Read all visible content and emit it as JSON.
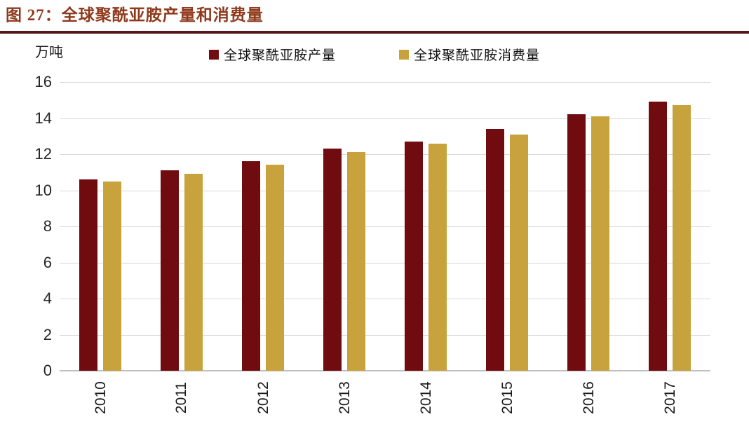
{
  "page": {
    "figure_title": "图 27：全球聚酰亚胺产量和消费量"
  },
  "chart": {
    "unit_label": "万吨"
  },
  "colors": {
    "title_text": "#8F3A1C",
    "title_rule": "#54181B",
    "production_bar": "#700C10",
    "consumption_bar": "#C8A23C",
    "gridline": "#D9D9D9",
    "axis_line": "#BFBFBF"
  },
  "chart_data": {
    "type": "bar",
    "title": "全球聚酰亚胺产量和消费量",
    "ylabel": "万吨",
    "xlabel": "",
    "categories": [
      "2010",
      "2011",
      "2012",
      "2013",
      "2014",
      "2015",
      "2016",
      "2017"
    ],
    "series": [
      {
        "name": "全球聚酰亚胺产量",
        "color": "#700C10",
        "values": [
          10.6,
          11.1,
          11.6,
          12.3,
          12.7,
          13.4,
          14.2,
          14.9
        ]
      },
      {
        "name": "全球聚酰亚胺消费量",
        "color": "#C8A23C",
        "values": [
          10.5,
          10.9,
          11.4,
          12.1,
          12.6,
          13.1,
          14.1,
          14.7
        ]
      }
    ],
    "ylim": [
      0,
      16
    ],
    "yticks": [
      0,
      2,
      4,
      6,
      8,
      10,
      12,
      14,
      16
    ],
    "grid": true,
    "legend_position": "top"
  }
}
